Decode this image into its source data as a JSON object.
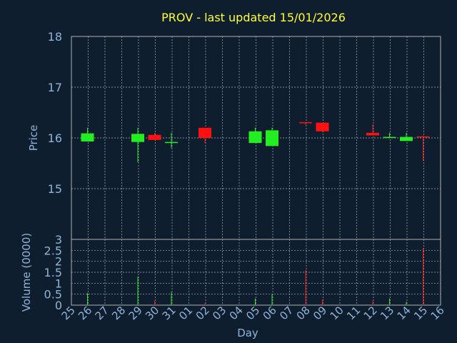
{
  "colors": {
    "background": "#0f1e2e",
    "title": "#ffff33",
    "axis_text": "#8fb4d8",
    "grid": "#b0b0b0",
    "up": "#22ee22",
    "down": "#ff1111",
    "frame": "#b0b0b0"
  },
  "chart_data": [
    {
      "type": "candlestick",
      "title": "PROV - last updated 15/01/2026",
      "ylabel": "Price",
      "ylim": [
        14.0,
        18.0
      ],
      "yticks": [
        "15",
        "16",
        "17",
        "18"
      ],
      "grid": true,
      "x_days": [
        "25",
        "26",
        "27",
        "28",
        "29",
        "30",
        "31",
        "01",
        "02",
        "03",
        "04",
        "05",
        "06",
        "07",
        "08",
        "09",
        "10",
        "11",
        "12",
        "13",
        "14",
        "15",
        "16"
      ],
      "candles": [
        {
          "day": "26",
          "open": 15.93,
          "high": 16.2,
          "low": 15.93,
          "close": 16.09
        },
        {
          "day": "29",
          "open": 15.92,
          "high": 16.2,
          "low": 15.52,
          "close": 16.08
        },
        {
          "day": "30",
          "open": 16.06,
          "high": 16.1,
          "low": 15.95,
          "close": 15.96
        },
        {
          "day": "31",
          "open": 15.91,
          "high": 16.1,
          "low": 15.8,
          "close": 15.92
        },
        {
          "day": "02",
          "open": 16.2,
          "high": 16.2,
          "low": 15.9,
          "close": 16.0
        },
        {
          "day": "05",
          "open": 15.9,
          "high": 16.2,
          "low": 15.9,
          "close": 16.13
        },
        {
          "day": "06",
          "open": 15.84,
          "high": 16.2,
          "low": 15.84,
          "close": 16.15
        },
        {
          "day": "08",
          "open": 16.31,
          "high": 16.31,
          "low": 16.25,
          "close": 16.29
        },
        {
          "day": "09",
          "open": 16.3,
          "high": 16.3,
          "low": 16.12,
          "close": 16.13
        },
        {
          "day": "12",
          "open": 16.1,
          "high": 16.27,
          "low": 16.05,
          "close": 16.05
        },
        {
          "day": "13",
          "open": 16.0,
          "high": 16.1,
          "low": 16.0,
          "close": 16.02
        },
        {
          "day": "14",
          "open": 15.94,
          "high": 16.1,
          "low": 15.94,
          "close": 16.02
        },
        {
          "day": "15",
          "open": 16.03,
          "high": 16.04,
          "low": 15.55,
          "close": 16.02
        }
      ]
    },
    {
      "type": "bar",
      "ylabel": "Volume (0000)",
      "xlabel": "Day",
      "ylim": [
        0,
        3
      ],
      "yticks": [
        "0",
        "0.5",
        "1",
        "1.5",
        "2",
        "2.5",
        "3"
      ],
      "grid": true,
      "bars": [
        {
          "day": "26",
          "value": 0.55,
          "dir": "up"
        },
        {
          "day": "29",
          "value": 1.3,
          "dir": "up"
        },
        {
          "day": "30",
          "value": 0.2,
          "dir": "down"
        },
        {
          "day": "31",
          "value": 0.6,
          "dir": "up"
        },
        {
          "day": "02",
          "value": 0.1,
          "dir": "down"
        },
        {
          "day": "05",
          "value": 0.3,
          "dir": "up"
        },
        {
          "day": "06",
          "value": 0.5,
          "dir": "up"
        },
        {
          "day": "08",
          "value": 1.6,
          "dir": "down"
        },
        {
          "day": "09",
          "value": 0.25,
          "dir": "down"
        },
        {
          "day": "12",
          "value": 0.2,
          "dir": "down"
        },
        {
          "day": "13",
          "value": 0.3,
          "dir": "up"
        },
        {
          "day": "14",
          "value": 0.15,
          "dir": "up"
        },
        {
          "day": "15",
          "value": 2.6,
          "dir": "down"
        }
      ]
    }
  ]
}
